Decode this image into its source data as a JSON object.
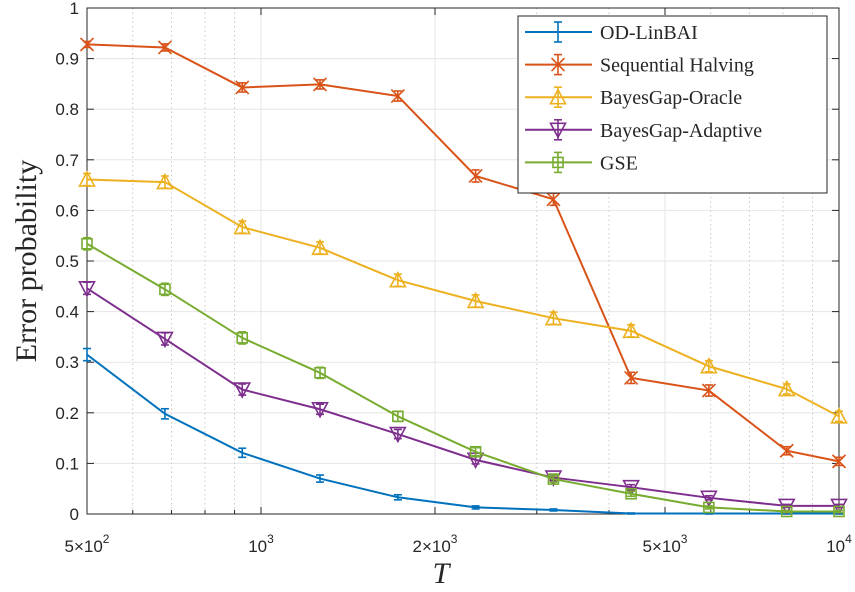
{
  "chart_data": {
    "type": "line",
    "xlabel": "T",
    "ylabel": "Error probability",
    "xscale": "log",
    "xlim": [
      500,
      10000
    ],
    "ylim": [
      0,
      1
    ],
    "grid": true,
    "legend_position": "top-right",
    "x_ticks": [
      {
        "value": 500,
        "mantissa": "5",
        "exponent": "2"
      },
      {
        "value": 1000,
        "mantissa": "",
        "exponent": "3"
      },
      {
        "value": 2000,
        "mantissa": "2",
        "exponent": "3"
      },
      {
        "value": 5000,
        "mantissa": "5",
        "exponent": "3"
      },
      {
        "value": 10000,
        "mantissa": "",
        "exponent": "4"
      }
    ],
    "y_ticks": [
      {
        "value": 0,
        "label": "0"
      },
      {
        "value": 0.1,
        "label": "0.1"
      },
      {
        "value": 0.2,
        "label": "0.2"
      },
      {
        "value": 0.3,
        "label": "0.3"
      },
      {
        "value": 0.4,
        "label": "0.4"
      },
      {
        "value": 0.5,
        "label": "0.5"
      },
      {
        "value": 0.6,
        "label": "0.6"
      },
      {
        "value": 0.7,
        "label": "0.7"
      },
      {
        "value": 0.8,
        "label": "0.8"
      },
      {
        "value": 0.9,
        "label": "0.9"
      },
      {
        "value": 1,
        "label": "1"
      }
    ],
    "x": [
      500,
      682,
      928,
      1265,
      1725,
      2351,
      3206,
      4368,
      5955,
      8120,
      10000
    ],
    "series": [
      {
        "name": "OD-LinBAI",
        "color": "#0072BD",
        "marker": "none",
        "values": [
          0.315,
          0.198,
          0.121,
          0.07,
          0.033,
          0.013,
          0.008,
          0.001,
          0.001,
          0.001,
          0.001
        ],
        "errors": [
          0.012,
          0.01,
          0.009,
          0.007,
          0.005,
          0.003,
          0.002,
          0.001,
          0.001,
          0.001,
          0.001
        ]
      },
      {
        "name": "Sequential Halving",
        "color": "#D95319",
        "marker": "x",
        "values": [
          0.928,
          0.922,
          0.843,
          0.849,
          0.826,
          0.668,
          0.622,
          0.269,
          0.244,
          0.125,
          0.104
        ],
        "errors": [
          0.006,
          0.007,
          0.009,
          0.009,
          0.01,
          0.012,
          0.012,
          0.011,
          0.011,
          0.008,
          0.008
        ]
      },
      {
        "name": "BayesGap-Oracle",
        "color": "#EDB120",
        "marker": "triangle-up",
        "values": [
          0.661,
          0.656,
          0.567,
          0.526,
          0.462,
          0.421,
          0.387,
          0.362,
          0.292,
          0.247,
          0.193
        ],
        "errors": [
          0.012,
          0.012,
          0.012,
          0.012,
          0.012,
          0.012,
          0.012,
          0.012,
          0.011,
          0.01,
          0.01
        ]
      },
      {
        "name": "BayesGap-Adaptive",
        "color": "#7E2F8E",
        "marker": "triangle-down",
        "values": [
          0.446,
          0.346,
          0.246,
          0.207,
          0.158,
          0.107,
          0.072,
          0.053,
          0.032,
          0.016,
          0.016
        ],
        "errors": [
          0.012,
          0.012,
          0.011,
          0.01,
          0.009,
          0.008,
          0.006,
          0.005,
          0.004,
          0.003,
          0.003
        ]
      },
      {
        "name": "GSE",
        "color": "#77AC30",
        "marker": "square",
        "values": [
          0.534,
          0.444,
          0.348,
          0.279,
          0.193,
          0.123,
          0.069,
          0.04,
          0.013,
          0.005,
          0.005
        ],
        "errors": [
          0.012,
          0.012,
          0.012,
          0.011,
          0.01,
          0.008,
          0.006,
          0.005,
          0.003,
          0.002,
          0.002
        ]
      }
    ]
  }
}
